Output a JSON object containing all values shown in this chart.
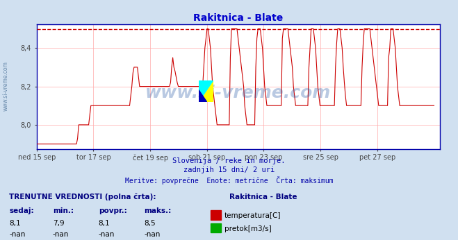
{
  "title": "Rakitnica - Blate",
  "title_color": "#0000cc",
  "bg_color": "#d0e0f0",
  "plot_bg_color": "#ffffff",
  "grid_color": "#ffaaaa",
  "axis_color": "#0000aa",
  "temp_line_color": "#cc0000",
  "max_line_color": "#cc0000",
  "max_line_value": 8.5,
  "ylim": [
    7.875,
    8.525
  ],
  "yticks": [
    8.0,
    8.2,
    8.4
  ],
  "ylabel_values": [
    "8,0",
    "8,2",
    "8,4"
  ],
  "subtitle1": "Slovenija / reke in morje.",
  "subtitle2": "zadnjih 15 dni/ 2 uri",
  "subtitle3": "Meritve: povprečne  Enote: metrične  Črta: maksimum",
  "subtitle_color": "#0000aa",
  "watermark": "www.si-vreme.com",
  "watermark_color": "#1a4fa0",
  "left_label": "www.si-vreme.com",
  "left_label_color": "#6688aa",
  "legend_title": "Rakitnica - Blate",
  "legend_temp_label": "temperatura[C]",
  "legend_flow_label": "pretok[m3/s]",
  "temp_color": "#cc0000",
  "flow_color": "#00aa00",
  "table_header": "TRENUTNE VREDNOSTI (polna črta):",
  "table_cols": [
    "sedaj:",
    "min.:",
    "povpr.:",
    "maks.:"
  ],
  "table_temp_vals": [
    "8,1",
    "7,9",
    "8,1",
    "8,5"
  ],
  "table_flow_vals": [
    "-nan",
    "-nan",
    "-nan",
    "-nan"
  ],
  "x_tick_labels": [
    "ned 15 sep",
    "tor 17 sep",
    "čet 19 sep",
    "sob 21 sep",
    "pon 23 sep",
    "sre 25 sep",
    "pet 27 sep"
  ],
  "temperature_data": [
    7.9,
    7.9,
    7.9,
    7.9,
    7.9,
    7.9,
    7.9,
    7.9,
    7.9,
    7.9,
    7.9,
    7.9,
    7.9,
    7.9,
    7.9,
    7.9,
    7.9,
    7.9,
    7.9,
    7.9,
    7.9,
    7.9,
    7.9,
    7.9,
    7.9,
    7.9,
    7.9,
    7.9,
    7.9,
    7.9,
    7.9,
    7.9,
    7.9,
    7.9,
    7.9,
    7.9,
    7.9,
    7.93,
    8.0,
    8.0,
    8.0,
    8.0,
    8.0,
    8.0,
    8.0,
    8.0,
    8.0,
    8.0,
    8.05,
    8.1,
    8.1,
    8.1,
    8.1,
    8.1,
    8.1,
    8.1,
    8.1,
    8.1,
    8.1,
    8.1,
    8.1,
    8.1,
    8.1,
    8.1,
    8.1,
    8.1,
    8.1,
    8.1,
    8.1,
    8.1,
    8.1,
    8.1,
    8.1,
    8.1,
    8.1,
    8.1,
    8.1,
    8.1,
    8.1,
    8.1,
    8.1,
    8.1,
    8.1,
    8.1,
    8.1,
    8.15,
    8.2,
    8.27,
    8.3,
    8.3,
    8.3,
    8.3,
    8.25,
    8.2,
    8.2,
    8.2,
    8.2,
    8.2,
    8.2,
    8.2,
    8.2,
    8.2,
    8.2,
    8.2,
    8.2,
    8.2,
    8.2,
    8.2,
    8.2,
    8.2,
    8.2,
    8.2,
    8.2,
    8.2,
    8.2,
    8.2,
    8.2,
    8.2,
    8.2,
    8.2,
    8.2,
    8.22,
    8.3,
    8.35,
    8.3,
    8.28,
    8.25,
    8.22,
    8.2,
    8.2,
    8.2,
    8.2,
    8.2,
    8.2,
    8.2,
    8.2,
    8.2,
    8.2,
    8.2,
    8.2,
    8.2,
    8.2,
    8.2,
    8.2,
    8.2,
    8.2,
    8.2,
    8.2,
    8.2,
    8.2,
    8.2,
    8.3,
    8.4,
    8.45,
    8.5,
    8.5,
    8.45,
    8.4,
    8.3,
    8.2,
    8.15,
    8.1,
    8.05,
    8.0,
    8.0,
    8.0,
    8.0,
    8.0,
    8.0,
    8.0,
    8.0,
    8.0,
    8.0,
    8.0,
    8.0,
    8.35,
    8.5,
    8.5,
    8.5,
    8.5,
    8.5,
    8.5,
    8.45,
    8.4,
    8.35,
    8.3,
    8.25,
    8.2,
    8.1,
    8.05,
    8.0,
    8.0,
    8.0,
    8.0,
    8.0,
    8.0,
    8.0,
    8.0,
    8.3,
    8.45,
    8.5,
    8.5,
    8.5,
    8.45,
    8.4,
    8.3,
    8.2,
    8.15,
    8.1,
    8.1,
    8.1,
    8.1,
    8.1,
    8.1,
    8.1,
    8.1,
    8.1,
    8.1,
    8.1,
    8.1,
    8.1,
    8.1,
    8.45,
    8.5,
    8.5,
    8.5,
    8.5,
    8.5,
    8.45,
    8.4,
    8.35,
    8.3,
    8.2,
    8.15,
    8.1,
    8.1,
    8.1,
    8.1,
    8.1,
    8.1,
    8.1,
    8.1,
    8.1,
    8.1,
    8.1,
    8.1,
    8.3,
    8.4,
    8.5,
    8.5,
    8.5,
    8.45,
    8.4,
    8.3,
    8.2,
    8.15,
    8.1,
    8.1,
    8.1,
    8.1,
    8.1,
    8.1,
    8.1,
    8.1,
    8.1,
    8.1,
    8.1,
    8.1,
    8.1,
    8.1,
    8.3,
    8.42,
    8.5,
    8.5,
    8.5,
    8.45,
    8.4,
    8.3,
    8.22,
    8.15,
    8.1,
    8.1,
    8.1,
    8.1,
    8.1,
    8.1,
    8.1,
    8.1,
    8.1,
    8.1,
    8.1,
    8.1,
    8.1,
    8.1,
    8.3,
    8.42,
    8.5,
    8.5,
    8.5,
    8.5,
    8.5,
    8.5,
    8.45,
    8.4,
    8.35,
    8.3,
    8.25,
    8.2,
    8.15,
    8.1,
    8.1,
    8.1,
    8.1,
    8.1,
    8.1,
    8.1,
    8.1,
    8.1,
    8.35,
    8.4,
    8.5,
    8.5,
    8.5,
    8.45,
    8.4,
    8.3,
    8.2,
    8.15,
    8.1,
    8.1,
    8.1,
    8.1,
    8.1,
    8.1,
    8.1,
    8.1,
    8.1,
    8.1,
    8.1,
    8.1,
    8.1,
    8.1,
    8.1,
    8.1,
    8.1,
    8.1,
    8.1,
    8.1,
    8.1,
    8.1,
    8.1,
    8.1,
    8.1,
    8.1,
    8.1,
    8.1,
    8.1,
    8.1,
    8.1,
    8.1
  ]
}
